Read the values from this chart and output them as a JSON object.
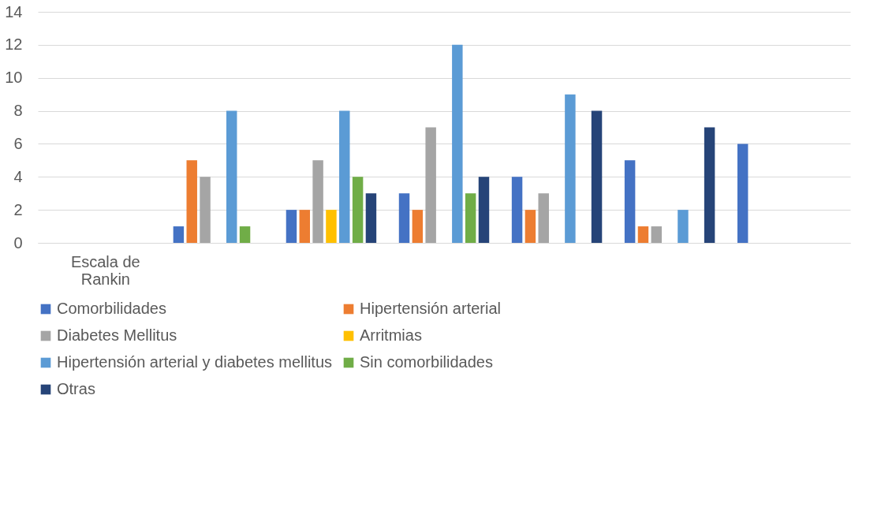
{
  "chart_data": {
    "type": "bar",
    "categories": [
      "Escala de Rankin",
      null,
      null,
      null,
      null,
      null,
      null
    ],
    "series": [
      {
        "name": "Comorbilidades",
        "color": "#4472c4",
        "values": [
          null,
          1,
          2,
          3,
          4,
          5,
          6
        ]
      },
      {
        "name": "Hipertensión arterial",
        "color": "#ed7d31",
        "values": [
          null,
          5,
          2,
          2,
          2,
          1,
          null
        ]
      },
      {
        "name": "Diabetes Mellitus",
        "color": "#a5a5a5",
        "values": [
          null,
          4,
          5,
          7,
          3,
          1,
          null
        ]
      },
      {
        "name": "Arritmias",
        "color": "#ffc000",
        "values": [
          null,
          null,
          2,
          null,
          null,
          null,
          null
        ]
      },
      {
        "name": "Hipertensión arterial y diabetes mellitus",
        "color": "#5b9bd5",
        "values": [
          null,
          8,
          8,
          12,
          9,
          2,
          null
        ]
      },
      {
        "name": "Sin comorbilidades",
        "color": "#70ad47",
        "values": [
          null,
          1,
          4,
          3,
          null,
          null,
          null
        ]
      },
      {
        "name": "Otras",
        "color": "#264478",
        "values": [
          null,
          null,
          3,
          4,
          8,
          7,
          null
        ]
      }
    ],
    "ylim": [
      0,
      14
    ],
    "yticks": [
      0,
      2,
      4,
      6,
      8,
      10,
      12,
      14
    ],
    "grid": "y",
    "legend": "bottom"
  }
}
